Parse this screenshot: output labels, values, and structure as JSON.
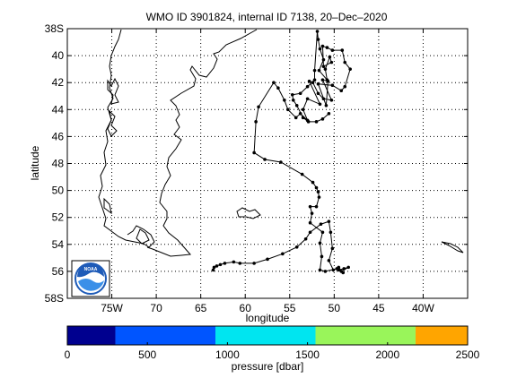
{
  "figure": {
    "title": "WMO ID 3901824, internal ID 7138, 20–Dec–2020",
    "xlabel": "longitude",
    "ylabel": "latitude",
    "colorbar_label": "pressure [dbar]"
  },
  "chart_data": {
    "type": "scatter",
    "title": "WMO ID 3901824, internal ID 7138, 20–Dec–2020",
    "xlabel": "longitude",
    "ylabel": "latitude",
    "xlim": [
      -80,
      -35
    ],
    "ylim": [
      -58,
      -38
    ],
    "grid": true,
    "x_ticks": [
      {
        "value": -75,
        "label": "75W"
      },
      {
        "value": -70,
        "label": "70"
      },
      {
        "value": -65,
        "label": "65"
      },
      {
        "value": -60,
        "label": "60"
      },
      {
        "value": -55,
        "label": "55"
      },
      {
        "value": -50,
        "label": "50"
      },
      {
        "value": -45,
        "label": "45"
      },
      {
        "value": -40,
        "label": "40W"
      }
    ],
    "y_ticks": [
      {
        "value": -38,
        "label": "38S"
      },
      {
        "value": -40,
        "label": "40"
      },
      {
        "value": -42,
        "label": "42"
      },
      {
        "value": -44,
        "label": "44"
      },
      {
        "value": -46,
        "label": "46"
      },
      {
        "value": -48,
        "label": "48"
      },
      {
        "value": -50,
        "label": "50"
      },
      {
        "value": -52,
        "label": "52"
      },
      {
        "value": -54,
        "label": "54"
      },
      {
        "value": -56,
        "label": "56"
      },
      {
        "value": -58,
        "label": "58S"
      }
    ],
    "track": [
      [
        -63.6,
        -55.9
      ],
      [
        -63.5,
        -55.7
      ],
      [
        -63.2,
        -55.6
      ],
      [
        -62.8,
        -55.5
      ],
      [
        -62.3,
        -55.4
      ],
      [
        -61.3,
        -55.3
      ],
      [
        -60.6,
        -55.4
      ],
      [
        -59.0,
        -55.4
      ],
      [
        -57.5,
        -55.1
      ],
      [
        -55.8,
        -54.7
      ],
      [
        -54.2,
        -54.2
      ],
      [
        -53.2,
        -53.6
      ],
      [
        -52.7,
        -53.1
      ],
      [
        -51.5,
        -52.5
      ],
      [
        -50.6,
        -52.3
      ],
      [
        -50.4,
        -53.1
      ],
      [
        -50.2,
        -54.3
      ],
      [
        -50.6,
        -55.2
      ],
      [
        -50.1,
        -55.9
      ],
      [
        -49.5,
        -55.7
      ],
      [
        -49.0,
        -56.1
      ],
      [
        -49.5,
        -55.9
      ],
      [
        -48.9,
        -55.8
      ],
      [
        -48.4,
        -55.7
      ],
      [
        -49.2,
        -56.0
      ],
      [
        -49.7,
        -55.8
      ],
      [
        -51.0,
        -56.0
      ],
      [
        -51.6,
        -55.9
      ],
      [
        -51.4,
        -54.9
      ],
      [
        -51.6,
        -53.9
      ],
      [
        -51.3,
        -53.1
      ],
      [
        -52.7,
        -52.4
      ],
      [
        -52.5,
        -51.7
      ],
      [
        -52.7,
        -51.2
      ],
      [
        -52.0,
        -51.2
      ],
      [
        -51.7,
        -50.5
      ],
      [
        -51.8,
        -50.1
      ],
      [
        -52.0,
        -49.8
      ],
      [
        -52.4,
        -49.4
      ],
      [
        -53.6,
        -48.8
      ],
      [
        -56.0,
        -47.9
      ],
      [
        -57.8,
        -47.7
      ],
      [
        -59.0,
        -47.2
      ],
      [
        -58.8,
        -44.9
      ],
      [
        -58.5,
        -43.8
      ],
      [
        -56.8,
        -42.0
      ],
      [
        -56.3,
        -42.4
      ],
      [
        -55.6,
        -43.3
      ],
      [
        -55.2,
        -44.0
      ],
      [
        -54.3,
        -44.6
      ],
      [
        -53.8,
        -44.3
      ],
      [
        -53.0,
        -44.8
      ],
      [
        -53.5,
        -44.0
      ],
      [
        -53.0,
        -43.2
      ],
      [
        -51.6,
        -43.6
      ],
      [
        -52.8,
        -41.9
      ],
      [
        -52.4,
        -42.0
      ],
      [
        -51.8,
        -42.8
      ],
      [
        -51.2,
        -43.2
      ],
      [
        -50.3,
        -43.3
      ],
      [
        -51.3,
        -41.8
      ],
      [
        -50.7,
        -41.9
      ],
      [
        -50.9,
        -43.7
      ],
      [
        -51.8,
        -42.1
      ],
      [
        -50.2,
        -42.2
      ],
      [
        -49.2,
        -42.6
      ],
      [
        -48.8,
        -42.3
      ],
      [
        -48.2,
        -41.0
      ],
      [
        -48.8,
        -40.5
      ],
      [
        -49.1,
        -39.6
      ],
      [
        -50.2,
        -39.6
      ],
      [
        -50.8,
        -39.4
      ],
      [
        -51.3,
        -39.3
      ],
      [
        -51.2,
        -40.8
      ],
      [
        -50.3,
        -40.5
      ],
      [
        -50.5,
        -40.1
      ],
      [
        -51.0,
        -41.0
      ],
      [
        -50.8,
        -41.8
      ],
      [
        -51.7,
        -41.1
      ],
      [
        -51.2,
        -40.3
      ],
      [
        -51.6,
        -39.5
      ],
      [
        -51.8,
        -38.8
      ],
      [
        -51.9,
        -38.2
      ],
      [
        -52.2,
        -41.1
      ],
      [
        -52.2,
        -41.8
      ],
      [
        -53.0,
        -42.3
      ],
      [
        -53.8,
        -42.8
      ],
      [
        -54.7,
        -42.9
      ],
      [
        -54.6,
        -43.3
      ],
      [
        -54.2,
        -43.7
      ],
      [
        -53.5,
        -44.6
      ],
      [
        -52.9,
        -44.9
      ],
      [
        -52.0,
        -44.9
      ],
      [
        -51.3,
        -44.7
      ],
      [
        -50.6,
        -44.3
      ]
    ]
  },
  "colorbar": {
    "segments": [
      {
        "from": 0,
        "to": 300,
        "color": "#00008f"
      },
      {
        "from": 300,
        "to": 925,
        "color": "#0055ff"
      },
      {
        "from": 925,
        "to": 1550,
        "color": "#00e5f0"
      },
      {
        "from": 1550,
        "to": 2175,
        "color": "#99f55a"
      },
      {
        "from": 2175,
        "to": 2500,
        "color": "#ffa500"
      }
    ],
    "ticks": [
      {
        "value": 0,
        "label": "0"
      },
      {
        "value": 500,
        "label": "500"
      },
      {
        "value": 1000,
        "label": "1000"
      },
      {
        "value": 1500,
        "label": "1500"
      },
      {
        "value": 2000,
        "label": "2000"
      },
      {
        "value": 2500,
        "label": "2500"
      }
    ]
  },
  "logo": {
    "text": "NOAA",
    "colors": {
      "sky": "#1e5bb8",
      "sea": "#3a8fe8",
      "bird": "#ffffff"
    }
  }
}
